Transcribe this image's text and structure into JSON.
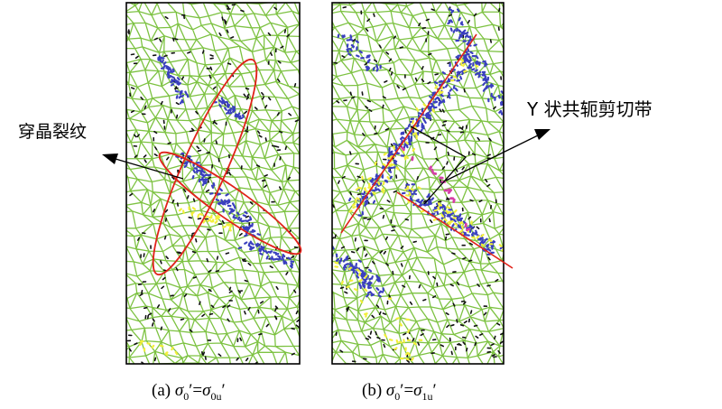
{
  "annotations": {
    "transgranular_label": "穿晶裂纹",
    "shear_band_label": "Y 状共轭剪切带"
  },
  "captions": {
    "a": {
      "prefix": "(a) ",
      "s1": "σ",
      "sub1": "0",
      "mid": "′=",
      "s2": "σ",
      "sub2": "0u",
      "suffix": "′"
    },
    "b": {
      "prefix": "(b) ",
      "s1": "σ",
      "sub1": "0",
      "mid": "′=",
      "s2": "σ",
      "sub2": "1u",
      "suffix": "′"
    }
  },
  "colors": {
    "grain_boundary": "#7dc242",
    "crack_black": "#111111",
    "crack_blue": "#3a3fbf",
    "crack_yellow": "#f2ef3a",
    "crack_magenta": "#d63fa6",
    "highlight_red": "#e0221a"
  }
}
